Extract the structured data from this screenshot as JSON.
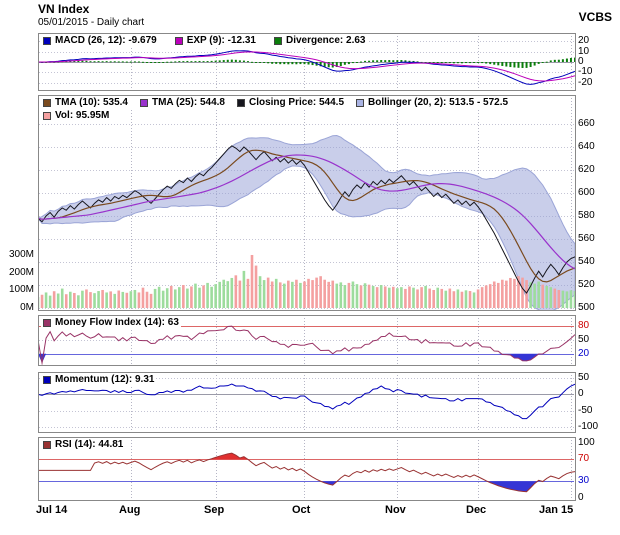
{
  "header": {
    "title": "VN Index",
    "subtitle": "05/01/2015 - Daily chart",
    "brand": "VCBS"
  },
  "colors": {
    "macd_line": "#0000bb",
    "exp_line": "#bb00bb",
    "divergence": "#0b7d0b",
    "tma10": "#7a4a1e",
    "tma25": "#9933cc",
    "close": "#16161e",
    "bollinger_fill": "rgba(148,158,214,0.5)",
    "bollinger_edge": "#9aa4d6",
    "bollinger_swatch": "#aab4e4",
    "vol_up": "#9ddc9d",
    "vol_down": "#f4a0a0",
    "mfi": "#993366",
    "momentum": "#0000bb",
    "rsi": "#993333",
    "fill_red": "#e03030",
    "fill_blue": "#3535d5",
    "threshold_red": "#dd6666",
    "threshold_blue": "#6666dd",
    "grid": "#c4c4d4",
    "panel_border": "#888888"
  },
  "chart_data": {
    "type": "line",
    "title": "VN Index",
    "subtitle": "05/01/2015 - Daily chart",
    "indicator_values": {
      "macd": -9.679,
      "exp": -12.31,
      "divergence": 2.63,
      "tma10": 535.4,
      "tma25": 544.8,
      "close": 544.5,
      "bollinger_low": 513.5,
      "bollinger_high": 572.5,
      "vol_m": 95.95,
      "mfi": 63,
      "momentum": 9.31,
      "rsi": 44.81
    },
    "x_ticks": [
      {
        "label": "Jul 14",
        "i": 0
      },
      {
        "label": "Aug",
        "i": 23
      },
      {
        "label": "Sep",
        "i": 44
      },
      {
        "label": "Oct",
        "i": 66
      },
      {
        "label": "Nov",
        "i": 89
      },
      {
        "label": "Dec",
        "i": 109
      },
      {
        "label": "Jan 15",
        "i": 132
      }
    ],
    "panels": {
      "macd": {
        "legend": [
          {
            "label": "MACD (26, 12): -9.679",
            "color": "#0000bb"
          },
          {
            "label": "EXP (9): -12.31",
            "color": "#bb00bb"
          },
          {
            "label": "Divergence: 2.63",
            "color": "#0b7d0b"
          }
        ],
        "y_ticks": [
          {
            "v": 20
          },
          {
            "v": 10
          },
          {
            "v": 0,
            "style": "zero"
          },
          {
            "v": -10
          },
          {
            "v": -20
          }
        ]
      },
      "price": {
        "legend": [
          {
            "label": "TMA (10): 535.4",
            "color": "#7a4a1e"
          },
          {
            "label": "TMA (25): 544.8",
            "color": "#9933cc"
          },
          {
            "label": "Closing Price: 544.5",
            "color": "#16161e"
          },
          {
            "label": "Bollinger (20, 2): 513.5 - 572.5",
            "color": "#aab4e4"
          }
        ],
        "legend2": [
          {
            "label": "Vol: 95.95M",
            "color": "#f4a0a0"
          }
        ],
        "y_ticks": [
          {
            "v": 660
          },
          {
            "v": 640
          },
          {
            "v": 620
          },
          {
            "v": 600
          },
          {
            "v": 580
          },
          {
            "v": 560
          },
          {
            "v": 540
          },
          {
            "v": 520
          },
          {
            "v": 500
          }
        ],
        "vol_ticks": [
          {
            "label": "300M",
            "v": 300
          },
          {
            "label": "200M",
            "v": 200
          },
          {
            "label": "100M",
            "v": 100
          },
          {
            "label": "0M",
            "v": 0
          }
        ]
      },
      "mfi": {
        "legend": [
          {
            "label": "Money Flow Index (14): 63",
            "color": "#993366"
          }
        ],
        "y_ticks": [
          {
            "v": 80,
            "style": "red"
          },
          {
            "v": 50
          },
          {
            "v": 20,
            "style": "blue"
          }
        ]
      },
      "momentum": {
        "legend": [
          {
            "label": "Momentum (12): 9.31",
            "color": "#0000bb"
          }
        ],
        "y_ticks": [
          {
            "v": 50
          },
          {
            "v": 0,
            "style": "zero"
          },
          {
            "v": -50
          },
          {
            "v": -100
          }
        ]
      },
      "rsi": {
        "legend": [
          {
            "label": "RSI (14): 44.81",
            "color": "#993333"
          }
        ],
        "y_ticks": [
          {
            "v": 100,
            "style": "none"
          },
          {
            "v": 70,
            "style": "red"
          },
          {
            "v": 30,
            "style": "blue"
          },
          {
            "v": 0,
            "style": "none"
          }
        ]
      }
    },
    "close": [
      578,
      575,
      580,
      583,
      579,
      584,
      587,
      585,
      589,
      586,
      590,
      593,
      590,
      587,
      591,
      594,
      592,
      596,
      593,
      597,
      595,
      598,
      596,
      599,
      602,
      600,
      597,
      594,
      591,
      595,
      599,
      603,
      606,
      604,
      608,
      611,
      609,
      613,
      610,
      614,
      617,
      615,
      619,
      622,
      626,
      630,
      634,
      638,
      641,
      639,
      636,
      640,
      637,
      633,
      629,
      633,
      636,
      632,
      628,
      631,
      627,
      630,
      626,
      629,
      625,
      628,
      624,
      618,
      612,
      606,
      600,
      594,
      589,
      585,
      590,
      596,
      601,
      597,
      603,
      607,
      604,
      609,
      605,
      610,
      607,
      611,
      608,
      612,
      609,
      612,
      615,
      611,
      607,
      610,
      606,
      602,
      605,
      601,
      597,
      600,
      596,
      599,
      595,
      591,
      594,
      590,
      593,
      589,
      592,
      588,
      583,
      577,
      571,
      565,
      558,
      551,
      544,
      537,
      530,
      523,
      517,
      513,
      519,
      526,
      532,
      527,
      533,
      538,
      534,
      529,
      535,
      540,
      543,
      544.5
    ],
    "volume_m": [
      62,
      75,
      88,
      70,
      95,
      82,
      110,
      78,
      92,
      85,
      72,
      98,
      105,
      90,
      84,
      96,
      102,
      88,
      94,
      80,
      99,
      91,
      86,
      95,
      102,
      88,
      115,
      92,
      80,
      108,
      120,
      98,
      112,
      125,
      105,
      118,
      130,
      110,
      122,
      138,
      115,
      128,
      142,
      120,
      135,
      148,
      160,
      152,
      170,
      185,
      155,
      210,
      165,
      300,
      240,
      180,
      158,
      172,
      150,
      165,
      145,
      138,
      155,
      148,
      160,
      142,
      150,
      165,
      158,
      172,
      180,
      160,
      148,
      155,
      138,
      145,
      130,
      142,
      150,
      135,
      128,
      140,
      132,
      125,
      118,
      130,
      122,
      115,
      120,
      112,
      118,
      108,
      122,
      115,
      105,
      118,
      125,
      110,
      102,
      115,
      108,
      98,
      110,
      95,
      105,
      92,
      100,
      96,
      88,
      105,
      118,
      128,
      135,
      150,
      142,
      160,
      155,
      170,
      165,
      180,
      172,
      158,
      145,
      138,
      150,
      132,
      125,
      118,
      110,
      102,
      98,
      94,
      100,
      95.95
    ]
  }
}
